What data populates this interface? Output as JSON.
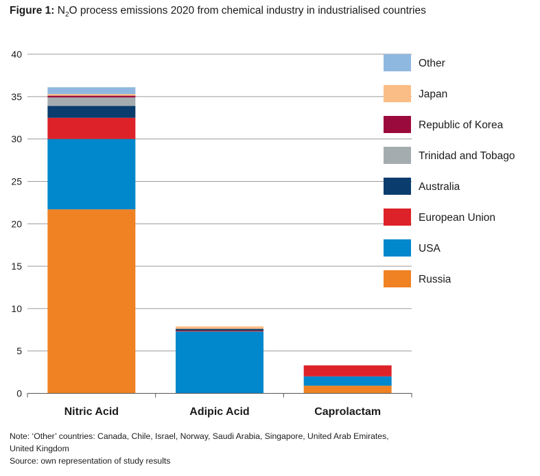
{
  "title": {
    "prefix": "Figure 1:",
    "pre_sub": "N",
    "sub": "2",
    "rest": "O process emissions 2020 from chemical industry in industrialised countries"
  },
  "notes": [
    "Note: ‘Other’ countries: Canada, Chile, Israel, Norway, Saudi Arabia, Singapore, United Arab Emirates,",
    "United Kingdom",
    "Source: own representation of study results"
  ],
  "chart_data": {
    "type": "bar",
    "stacked": true,
    "categories": [
      "Nitric Acid",
      "Adipic Acid",
      "Caprolactam"
    ],
    "ylim": [
      0,
      40
    ],
    "yticks": [
      0,
      5,
      10,
      15,
      20,
      25,
      30,
      35,
      40
    ],
    "grid": true,
    "legend_position": "right",
    "series": [
      {
        "name": "Russia",
        "color": "#f08223",
        "values": [
          21.7,
          0,
          0.9
        ]
      },
      {
        "name": "USA",
        "color": "#0087cc",
        "values": [
          8.3,
          7.3,
          1.1
        ]
      },
      {
        "name": "European Union",
        "color": "#dd2229",
        "values": [
          2.5,
          0.1,
          1.3
        ]
      },
      {
        "name": "Australia",
        "color": "#0a3c6e",
        "values": [
          1.4,
          0.2,
          0
        ]
      },
      {
        "name": "Trinidad and Tobago",
        "color": "#a5acb0",
        "values": [
          1.0,
          0,
          0
        ]
      },
      {
        "name": "Republic of Korea",
        "color": "#9b0a3c",
        "values": [
          0.2,
          0,
          0
        ]
      },
      {
        "name": "Japan",
        "color": "#fbbd86",
        "values": [
          0.2,
          0.3,
          0
        ]
      },
      {
        "name": "Other",
        "color": "#8fb8e0",
        "values": [
          0.8,
          0,
          0
        ]
      }
    ]
  }
}
